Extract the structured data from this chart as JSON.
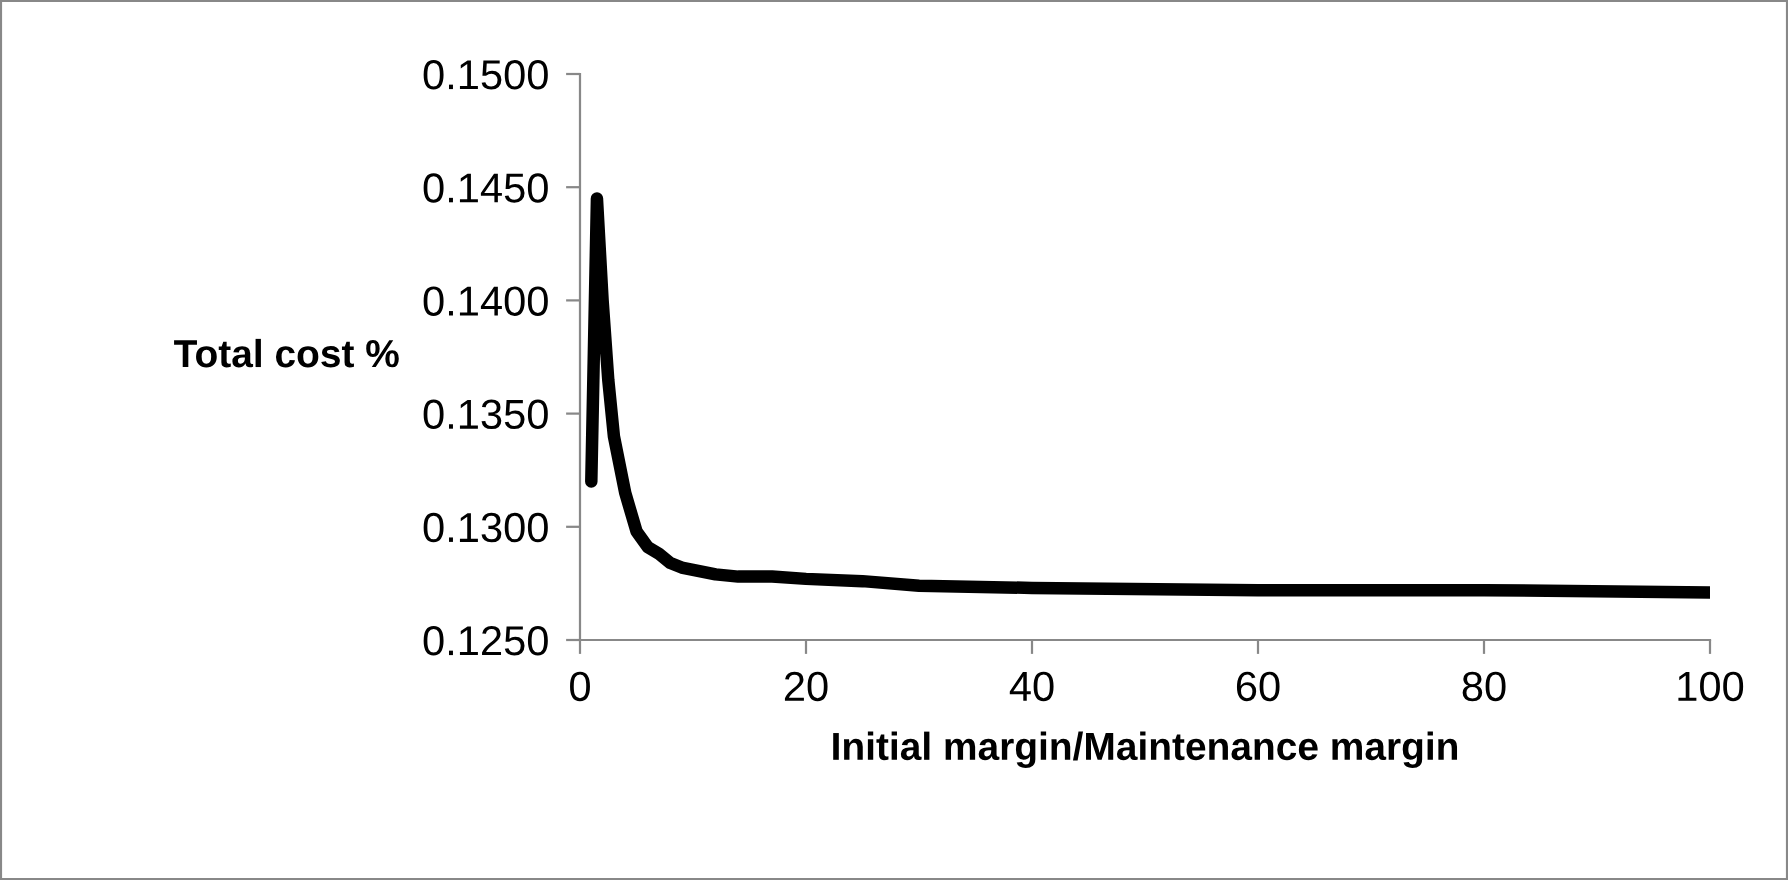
{
  "chart_data": {
    "type": "line",
    "xlabel": "Initial margin/Maintenance margin",
    "ylabel": "Total cost %",
    "series": [
      {
        "color": "#000000",
        "x": [
          1,
          1.5,
          2,
          2.5,
          3,
          4,
          5,
          6,
          7,
          8,
          9,
          10,
          12,
          14,
          17,
          20,
          25,
          30,
          40,
          60,
          80,
          100
        ],
        "values": [
          0.132,
          0.1445,
          0.14,
          0.1365,
          0.134,
          0.1315,
          0.1298,
          0.1291,
          0.1288,
          0.1284,
          0.1282,
          0.1281,
          0.1279,
          0.1278,
          0.1278,
          0.1277,
          0.1276,
          0.1274,
          0.1273,
          0.1272,
          0.1272,
          0.1271
        ]
      }
    ],
    "xlim": [
      0,
      100
    ],
    "xticks": [
      0,
      20,
      40,
      60,
      80,
      100
    ],
    "ylim": [
      0.125,
      0.15
    ],
    "yticks": [
      {
        "value": 0.125,
        "label": "0.1250"
      },
      {
        "value": 0.13,
        "label": "0.1300"
      },
      {
        "value": 0.135,
        "label": "0.1350"
      },
      {
        "value": 0.14,
        "label": "0.1400"
      },
      {
        "value": 0.145,
        "label": "0.1450"
      },
      {
        "value": 0.15,
        "label": "0.1500"
      }
    ],
    "marker": "none",
    "line_style": "solid"
  }
}
